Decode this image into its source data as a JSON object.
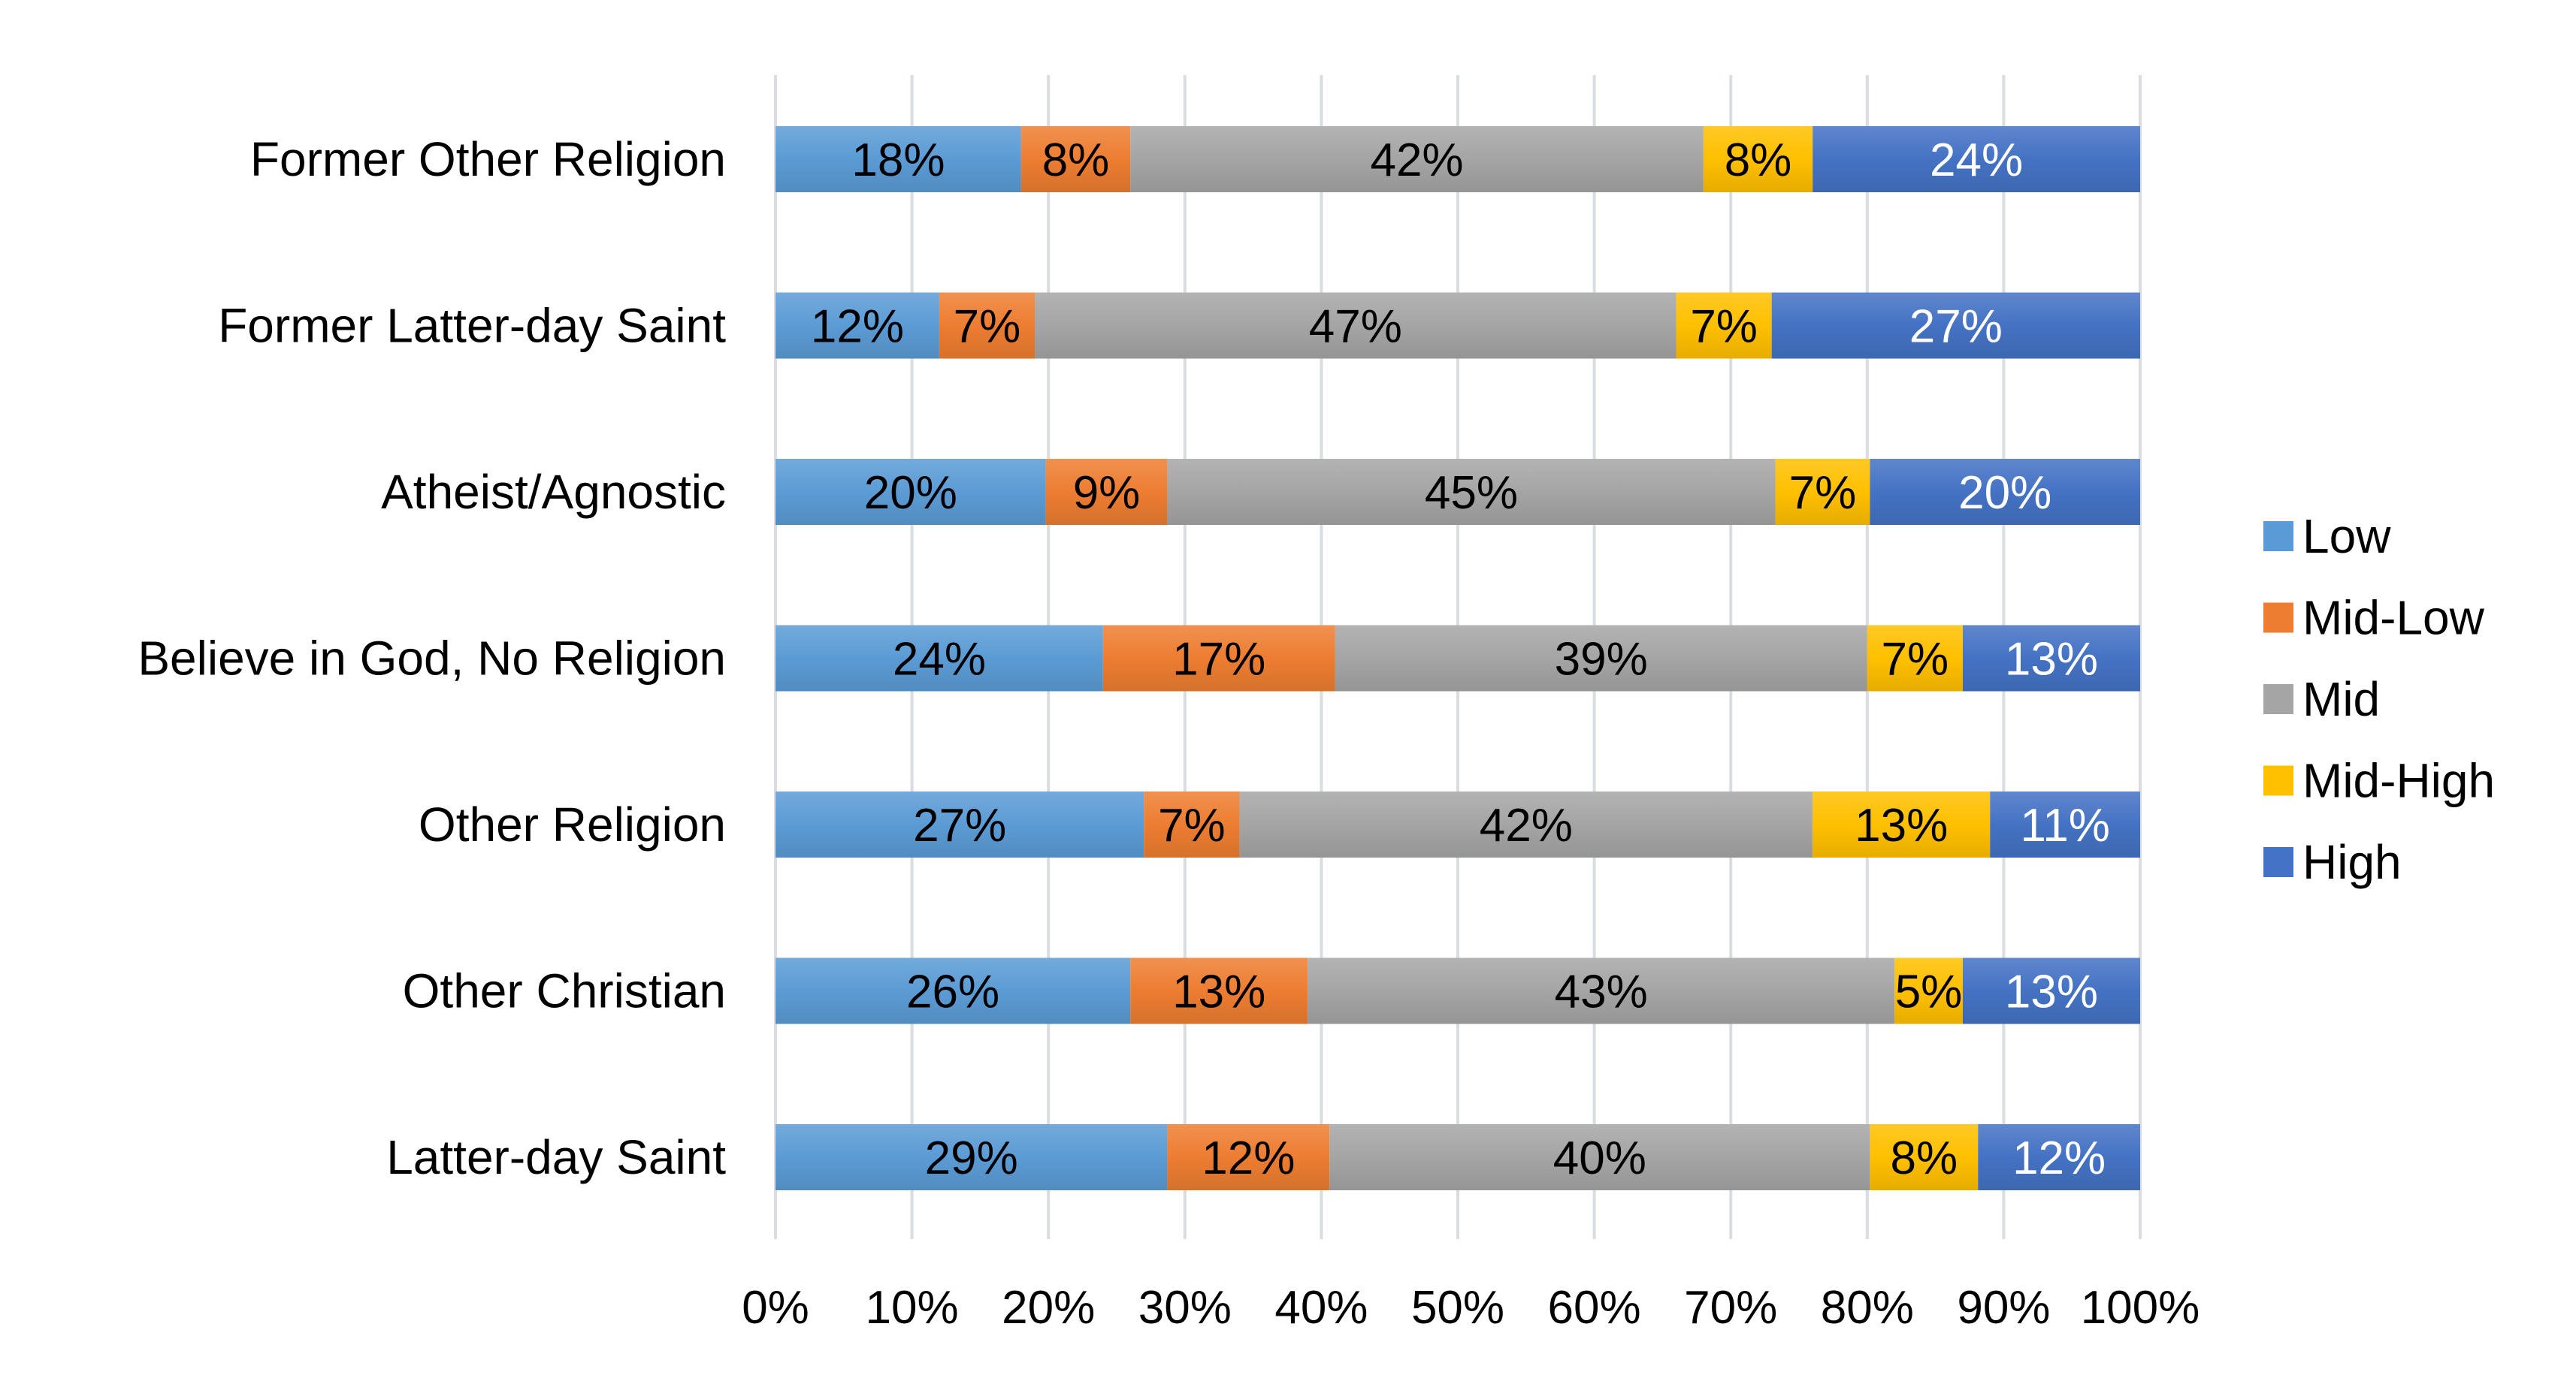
{
  "chart_data": {
    "type": "bar",
    "orientation": "horizontal",
    "stacked": "percent",
    "title": "",
    "xlabel": "",
    "ylabel": "",
    "xlim": [
      0,
      100
    ],
    "x_ticks": [
      "0%",
      "10%",
      "20%",
      "30%",
      "40%",
      "50%",
      "60%",
      "70%",
      "80%",
      "90%",
      "100%"
    ],
    "grid": "vertical",
    "legend_position": "right",
    "categories": [
      "Former Other Religion",
      "Former Latter-day Saint",
      "Atheist/Agnostic",
      "Believe in God, No Religion",
      "Other Religion",
      "Other Christian",
      "Latter-day Saint"
    ],
    "series": [
      {
        "name": "Low",
        "color": "#5B9BD5",
        "label_color": "#000000",
        "values": [
          18,
          12,
          20,
          24,
          27,
          26,
          29
        ]
      },
      {
        "name": "Mid-Low",
        "color": "#ED7D31",
        "label_color": "#000000",
        "values": [
          8,
          7,
          9,
          17,
          7,
          13,
          12
        ]
      },
      {
        "name": "Mid",
        "color": "#A5A5A5",
        "label_color": "#000000",
        "values": [
          42,
          47,
          45,
          39,
          42,
          43,
          40
        ]
      },
      {
        "name": "Mid-High",
        "color": "#FFC000",
        "label_color": "#000000",
        "values": [
          8,
          7,
          7,
          7,
          13,
          5,
          8
        ]
      },
      {
        "name": "High",
        "color": "#4472C4",
        "label_color": "#FFFFFF",
        "values": [
          24,
          27,
          20,
          13,
          11,
          13,
          12
        ]
      }
    ]
  }
}
